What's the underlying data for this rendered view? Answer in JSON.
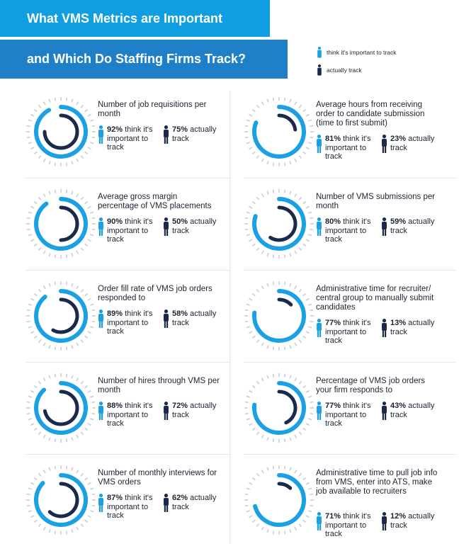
{
  "header": {
    "line1": "What VMS Metrics are Important",
    "line2": "and Which Do Staffing Firms Track?"
  },
  "legend": {
    "think": "think it's important to track",
    "actual": "actually track"
  },
  "colors": {
    "think": "#1aa0e3",
    "actual": "#1c2a4a",
    "tick": "#c9ccd2"
  },
  "chart_data": {
    "type": "donut",
    "series_labels": [
      "think it's important to track",
      "actually track"
    ],
    "metrics": [
      {
        "label": "Number of job requisitions per month",
        "think": 92,
        "actual": 75,
        "think_text": "92%",
        "actual_text": "75%"
      },
      {
        "label": "Average hours from receiving order to candidate submission (time to first submit)",
        "think": 81,
        "actual": 23,
        "think_text": "81%",
        "actual_text": "23%"
      },
      {
        "label": "Average gross margin percentage of VMS placements",
        "think": 90,
        "actual": 50,
        "think_text": "90%",
        "actual_text": "50%"
      },
      {
        "label": "Number of VMS submissions per month",
        "think": 80,
        "actual": 59,
        "think_text": "80%",
        "actual_text": "59%"
      },
      {
        "label": "Order fill rate of VMS job orders responded to",
        "think": 89,
        "actual": 58,
        "think_text": "89%",
        "actual_text": "58%"
      },
      {
        "label": "Administrative time for recruiter/ central group to manually submit candidates",
        "think": 77,
        "actual": 13,
        "think_text": "77%",
        "actual_text": "13%"
      },
      {
        "label": "Number of hires through VMS per month",
        "think": 88,
        "actual": 72,
        "think_text": "88%",
        "actual_text": "72%"
      },
      {
        "label": "Percentage of VMS job orders your firm responds to",
        "think": 77,
        "actual": 43,
        "think_text": "77%",
        "actual_text": "43%"
      },
      {
        "label": "Number of monthly interviews for VMS orders",
        "think": 87,
        "actual": 62,
        "think_text": "87%",
        "actual_text": "62%"
      },
      {
        "label": "Administrative time to pull job info from VMS, enter into ATS, make job available to recruiters",
        "think": 71,
        "actual": 12,
        "think_text": "71%",
        "actual_text": "12%"
      }
    ],
    "think_suffix": "think it's important to track",
    "actual_suffix": "actually track"
  }
}
